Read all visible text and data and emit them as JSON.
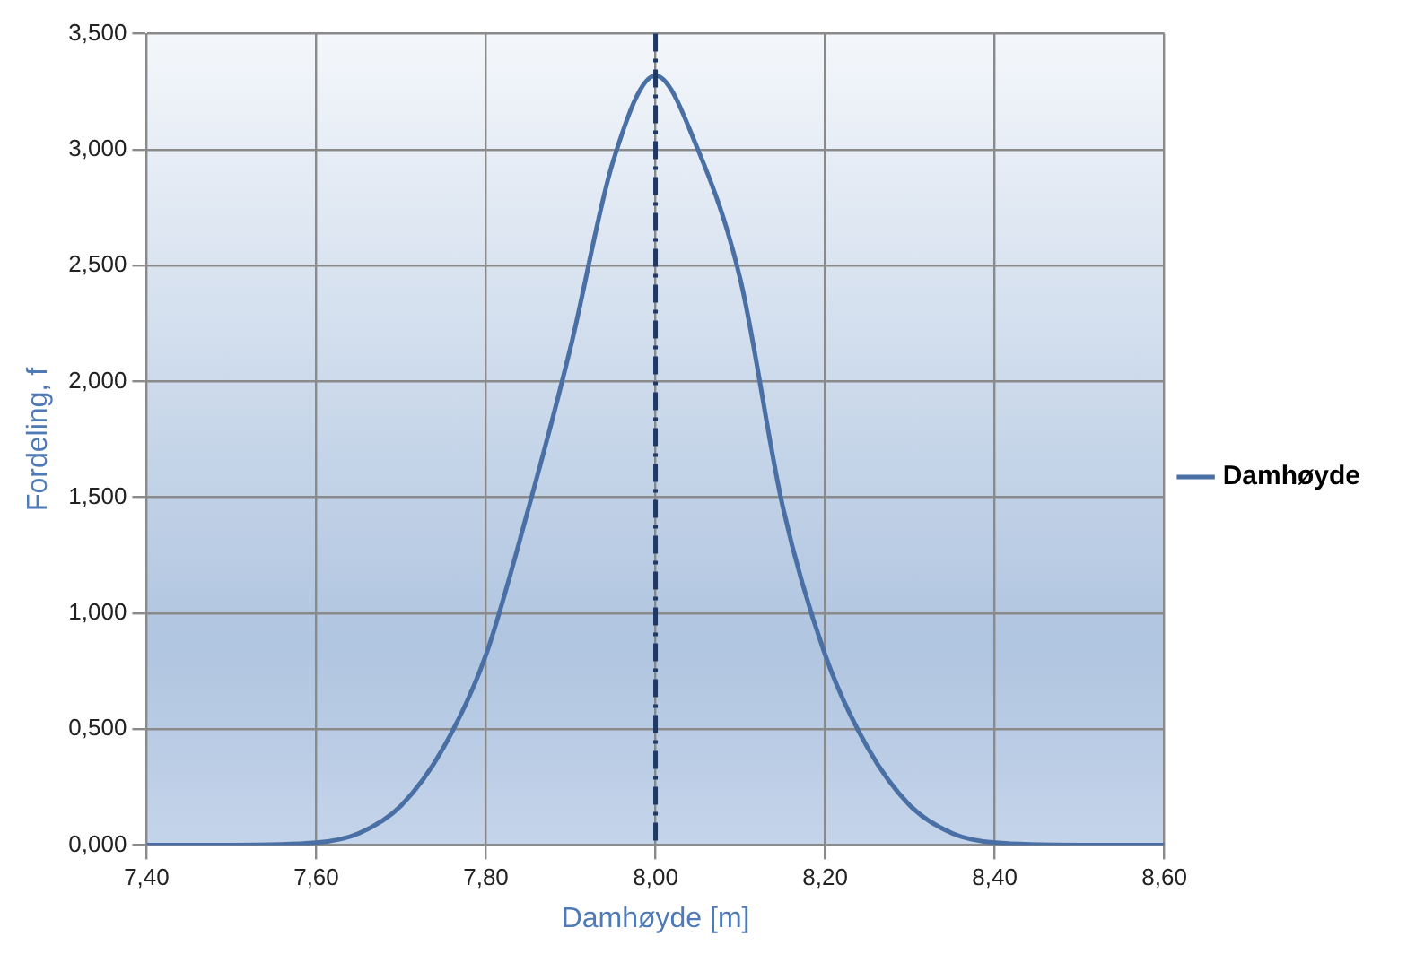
{
  "chart_data": {
    "type": "line",
    "xlabel": "Damhøyde [m]",
    "ylabel": "Fordeling, f",
    "x": [
      7.4,
      7.5,
      7.6,
      7.65,
      7.7,
      7.75,
      7.8,
      7.85,
      7.9,
      7.95,
      8.0,
      8.05,
      8.1,
      8.15,
      8.2,
      8.25,
      8.3,
      8.35,
      8.4,
      8.5,
      8.6
    ],
    "series": [
      {
        "name": "Damhøyde",
        "color": "#4a6fa5",
        "values": [
          0,
          0,
          0.01,
          0.05,
          0.17,
          0.42,
          0.82,
          1.45,
          2.15,
          2.95,
          3.32,
          3.0,
          2.44,
          1.46,
          0.82,
          0.42,
          0.17,
          0.05,
          0.01,
          0,
          0
        ]
      }
    ],
    "xlim": [
      7.4,
      8.6
    ],
    "ylim": [
      0,
      3.5
    ],
    "xticks": [
      {
        "value": 7.4,
        "label": "7,40"
      },
      {
        "value": 7.6,
        "label": "7,60"
      },
      {
        "value": 7.8,
        "label": "7,80"
      },
      {
        "value": 8.0,
        "label": "8,00"
      },
      {
        "value": 8.2,
        "label": "8,20"
      },
      {
        "value": 8.4,
        "label": "8,40"
      },
      {
        "value": 8.6,
        "label": "8,60"
      }
    ],
    "yticks": [
      {
        "value": 0,
        "label": "0,000"
      },
      {
        "value": 0.5,
        "label": "0,500"
      },
      {
        "value": 1,
        "label": "1,000"
      },
      {
        "value": 1.5,
        "label": "1,500"
      },
      {
        "value": 2,
        "label": "2,000"
      },
      {
        "value": 2.5,
        "label": "2,500"
      },
      {
        "value": 3,
        "label": "3,000"
      },
      {
        "value": 3.5,
        "label": "3,500"
      }
    ],
    "ref_lines": [
      {
        "axis": "x",
        "value": 8.0,
        "color": "#1f3864",
        "line_style": "dashdot"
      }
    ],
    "grid": true,
    "legend": "right",
    "marker": "none",
    "line_style": "solid"
  }
}
